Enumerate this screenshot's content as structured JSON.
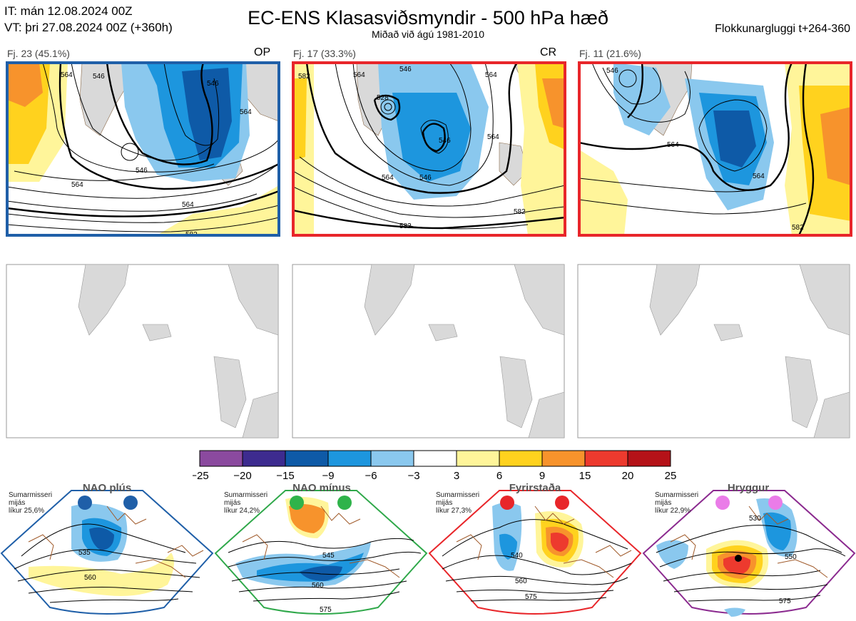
{
  "header": {
    "it_line": "IT: mán 12.08.2024 00Z",
    "vt_line": "VT: þri 27.08.2024 00Z  (+360h)",
    "title": "EC-ENS Klasasviðsmyndir - 500 hPa hæð",
    "subtitle": "Miðað við ágú 1981-2010",
    "window": "Flokkunargluggi t+264-360"
  },
  "clusters": [
    {
      "label": "Fj. 23 (45.1%)",
      "tag": "OP",
      "frame_color": "#1f5fa8",
      "contours": [
        "564",
        "546",
        "546",
        "564",
        "546",
        "564",
        "564",
        "582"
      ]
    },
    {
      "label": "Fj. 17 (33.3%)",
      "tag": "CR",
      "frame_color": "#e8262a",
      "contours": [
        "582",
        "564",
        "546",
        "528",
        "564",
        "546",
        "564",
        "546",
        "564",
        "582",
        "582"
      ]
    },
    {
      "label": "Fj. 11 (21.6%)",
      "tag": "",
      "frame_color": "#e8262a",
      "contours": [
        "546",
        "564",
        "564",
        "582"
      ]
    }
  ],
  "colorbar": {
    "ticks": [
      "−25",
      "−20",
      "−15",
      "−9",
      "−6",
      "−3",
      "3",
      "6",
      "9",
      "15",
      "20",
      "25"
    ],
    "colors": [
      "#8b4a9f",
      "#3d2b8f",
      "#0e5aa7",
      "#1d96de",
      "#8ac8ee",
      "#ffffff",
      "#fff59a",
      "#ffd21e",
      "#f7932c",
      "#ed3a2e",
      "#b51218"
    ]
  },
  "regimes": [
    {
      "title": "NAO plús",
      "note_lines": [
        "Sumarmisseri",
        "mijás",
        "líkur 25,6%"
      ],
      "frame_color": "#1f5fa8",
      "dot_color": "#1f5fa8",
      "contours": [
        "535",
        "560"
      ]
    },
    {
      "title": "NAO mínus",
      "note_lines": [
        "Sumarmisseri",
        "mijás",
        "líkur 24,2%"
      ],
      "frame_color": "#2fa84a",
      "dot_color": "#2fb34a",
      "contours": [
        "545",
        "560",
        "575"
      ]
    },
    {
      "title": "Fyrirstaða",
      "note_lines": [
        "Sumarmisseri",
        "mijás",
        "líkur 27,3%"
      ],
      "frame_color": "#e8262a",
      "dot_color": "#e8262a",
      "contours": [
        "540",
        "560",
        "575"
      ]
    },
    {
      "title": "Hryggur",
      "note_lines": [
        "Sumarmisseri",
        "mijás",
        "líkur 22,9%"
      ],
      "frame_color": "#8b2a8f",
      "dot_color": "#ea7ce8",
      "contours": [
        "530",
        "550",
        "575"
      ]
    }
  ]
}
